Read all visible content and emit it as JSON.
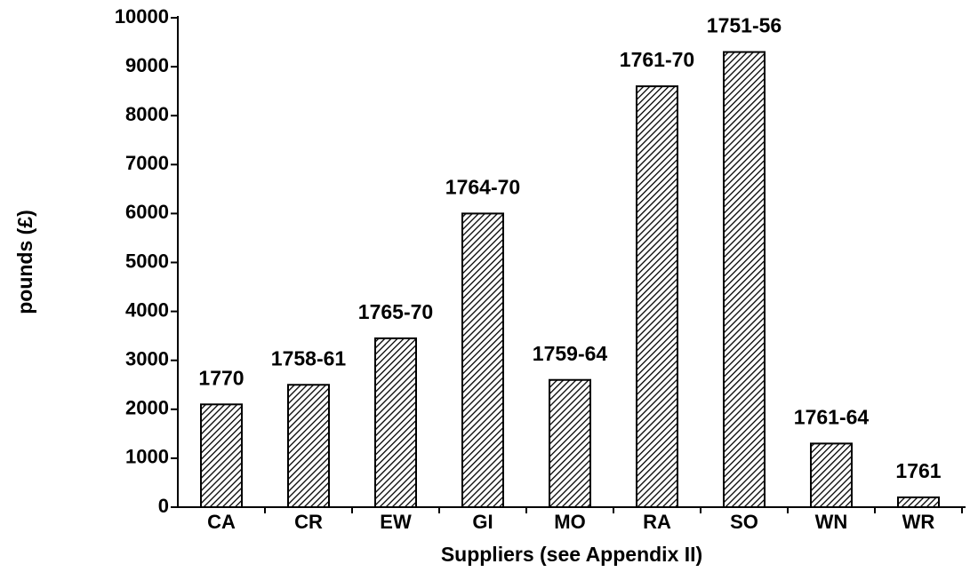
{
  "chart_data": {
    "type": "bar",
    "xlabel": "Suppliers (see Appendix II)",
    "ylabel": "pounds (£)",
    "categories": [
      "CA",
      "CR",
      "EW",
      "GI",
      "MO",
      "RA",
      "SO",
      "WN",
      "WR"
    ],
    "values": [
      2100,
      2500,
      3450,
      6000,
      2600,
      8600,
      9300,
      1300,
      200
    ],
    "bar_labels": [
      "1770",
      "1758-61",
      "1765-70",
      "1764-70",
      "1759-64",
      "1761-70",
      "1751-56",
      "1761-64",
      "1761"
    ],
    "color": "#000000",
    "ylim": [
      0,
      10000
    ],
    "yticks": [
      0,
      1000,
      2000,
      3000,
      4000,
      5000,
      6000,
      7000,
      8000,
      9000,
      10000
    ]
  }
}
